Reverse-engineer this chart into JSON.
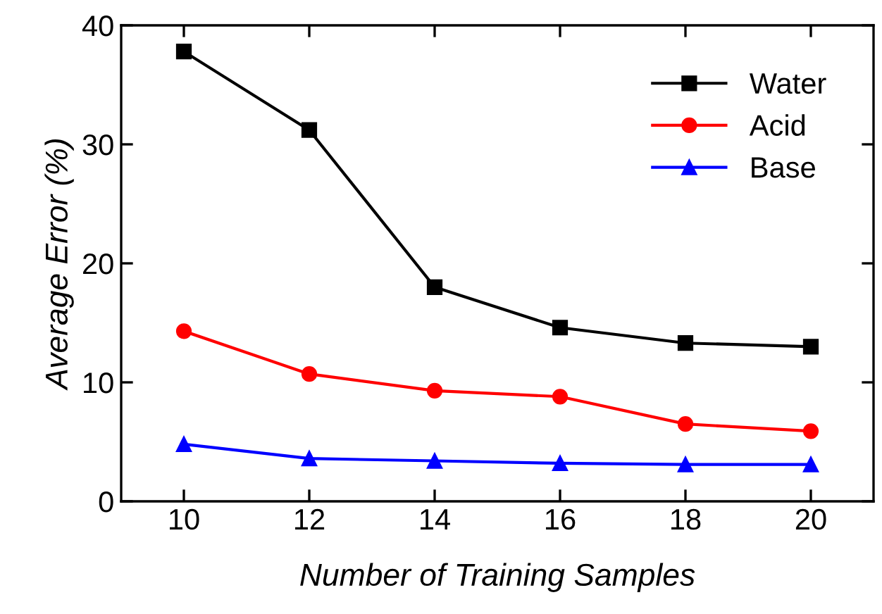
{
  "chart_data": {
    "type": "line",
    "xlabel": "Number of Training Samples",
    "ylabel": "Average Error (%)",
    "x": [
      10,
      12,
      14,
      16,
      18,
      20
    ],
    "series": [
      {
        "name": "Water",
        "color": "#000000",
        "marker": "square",
        "values": [
          37.8,
          31.2,
          18.0,
          14.6,
          13.3,
          13.0
        ]
      },
      {
        "name": "Acid",
        "color": "#ff0000",
        "marker": "circle",
        "values": [
          14.3,
          10.7,
          9.3,
          8.8,
          6.5,
          5.9
        ]
      },
      {
        "name": "Base",
        "color": "#0000ff",
        "marker": "triangle",
        "values": [
          4.8,
          3.6,
          3.4,
          3.2,
          3.1,
          3.1
        ]
      }
    ],
    "xlim": [
      9,
      21
    ],
    "xticks": [
      10,
      12,
      14,
      16,
      18,
      20
    ],
    "ylim": [
      0,
      40
    ],
    "yticks": [
      0,
      10,
      20,
      30,
      40
    ],
    "legend": "top right",
    "grid": false,
    "line_style": "solid"
  }
}
